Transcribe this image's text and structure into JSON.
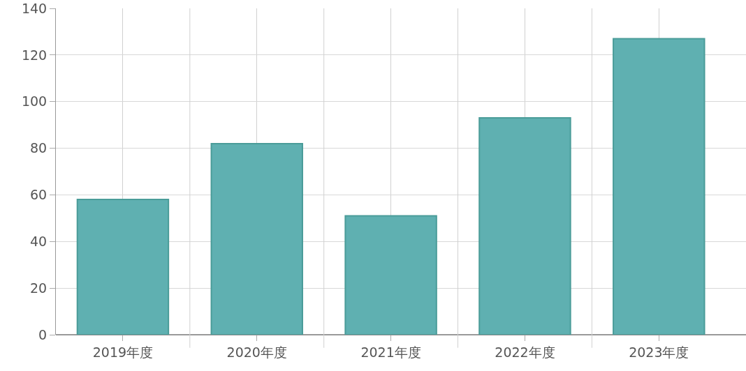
{
  "chart_data": {
    "type": "bar",
    "categories": [
      "2019年度",
      "2020年度",
      "2021年度",
      "2022年度",
      "2023年度"
    ],
    "values": [
      58,
      82,
      51,
      93,
      127
    ],
    "color": "#5fb0b1",
    "ylim": [
      0,
      140
    ],
    "yticks": [
      0,
      20,
      40,
      60,
      80,
      100,
      120,
      140
    ],
    "grid": true
  }
}
